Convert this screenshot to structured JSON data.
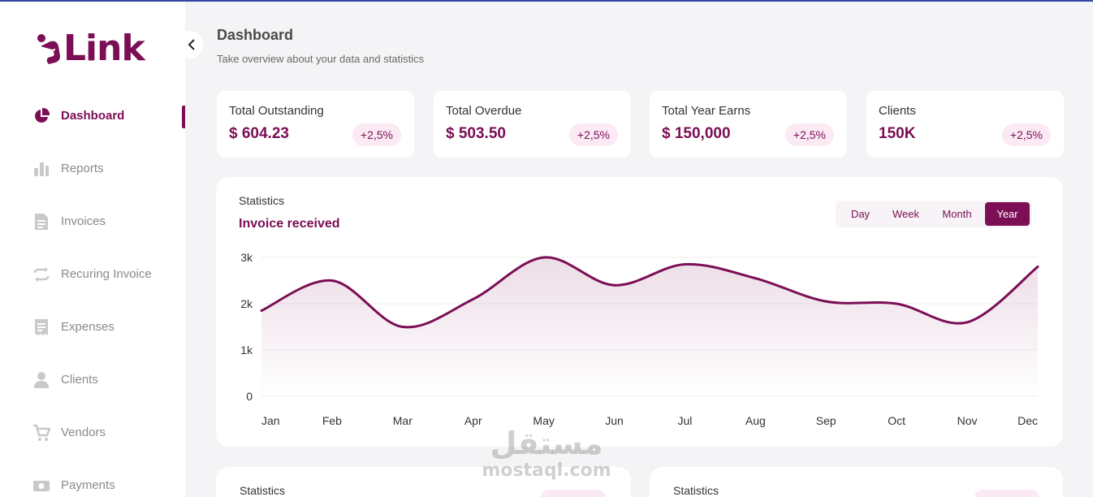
{
  "brand": {
    "name": "Link",
    "accent": "#7b0e55"
  },
  "sidebar": {
    "items": [
      {
        "label": "Dashboard",
        "icon": "pie-chart-icon",
        "active": true
      },
      {
        "label": "Reports",
        "icon": "bar-chart-icon"
      },
      {
        "label": "Invoices",
        "icon": "document-icon"
      },
      {
        "label": "Recuring Invoice",
        "icon": "recurring-arrows-icon"
      },
      {
        "label": "Expenses",
        "icon": "receipt-icon"
      },
      {
        "label": "Clients",
        "icon": "user-icon"
      },
      {
        "label": "Vendors",
        "icon": "cart-icon"
      },
      {
        "label": "Payments",
        "icon": "money-icon"
      }
    ]
  },
  "header": {
    "title": "Dashboard",
    "subtitle": "Take overview about your data and statistics"
  },
  "kpis": [
    {
      "label": "Total Outstanding",
      "value": "$ 604.23",
      "change": "+2,5%"
    },
    {
      "label": "Total Overdue",
      "value": "$ 503.50",
      "change": "+2,5%"
    },
    {
      "label": "Total Year Earns",
      "value": "$ 150,000",
      "change": "+2,5%"
    },
    {
      "label": "Clients",
      "value": "150K",
      "change": "+2,5%"
    }
  ],
  "statistics": {
    "kicker": "Statistics",
    "title": "Invoice received",
    "periods": [
      "Day",
      "Week",
      "Month",
      "Year"
    ],
    "selected_period": "Year"
  },
  "chart_data": {
    "type": "area",
    "x": [
      "Jan",
      "Feb",
      "Mar",
      "Apr",
      "May",
      "Jun",
      "Jul",
      "Aug",
      "Sep",
      "Oct",
      "Nov",
      "Dec"
    ],
    "series": [
      {
        "values": [
          1850,
          2500,
          1500,
          2100,
          3000,
          2400,
          2850,
          2550,
          2050,
          2000,
          1600,
          2800
        ]
      }
    ],
    "y_ticks": [
      "0",
      "1k",
      "2k",
      "3k"
    ],
    "ylim": [
      0,
      3000
    ],
    "grid": true,
    "colors": {
      "line": "#7b0e55",
      "fill": "#f3e3ec",
      "grid": "#eeeeee"
    }
  },
  "bottom_cards": [
    {
      "label": "Statistics"
    },
    {
      "label": "Statistics"
    }
  ],
  "watermark": {
    "arabic": "مستقل",
    "latin": "mostaql.com"
  }
}
